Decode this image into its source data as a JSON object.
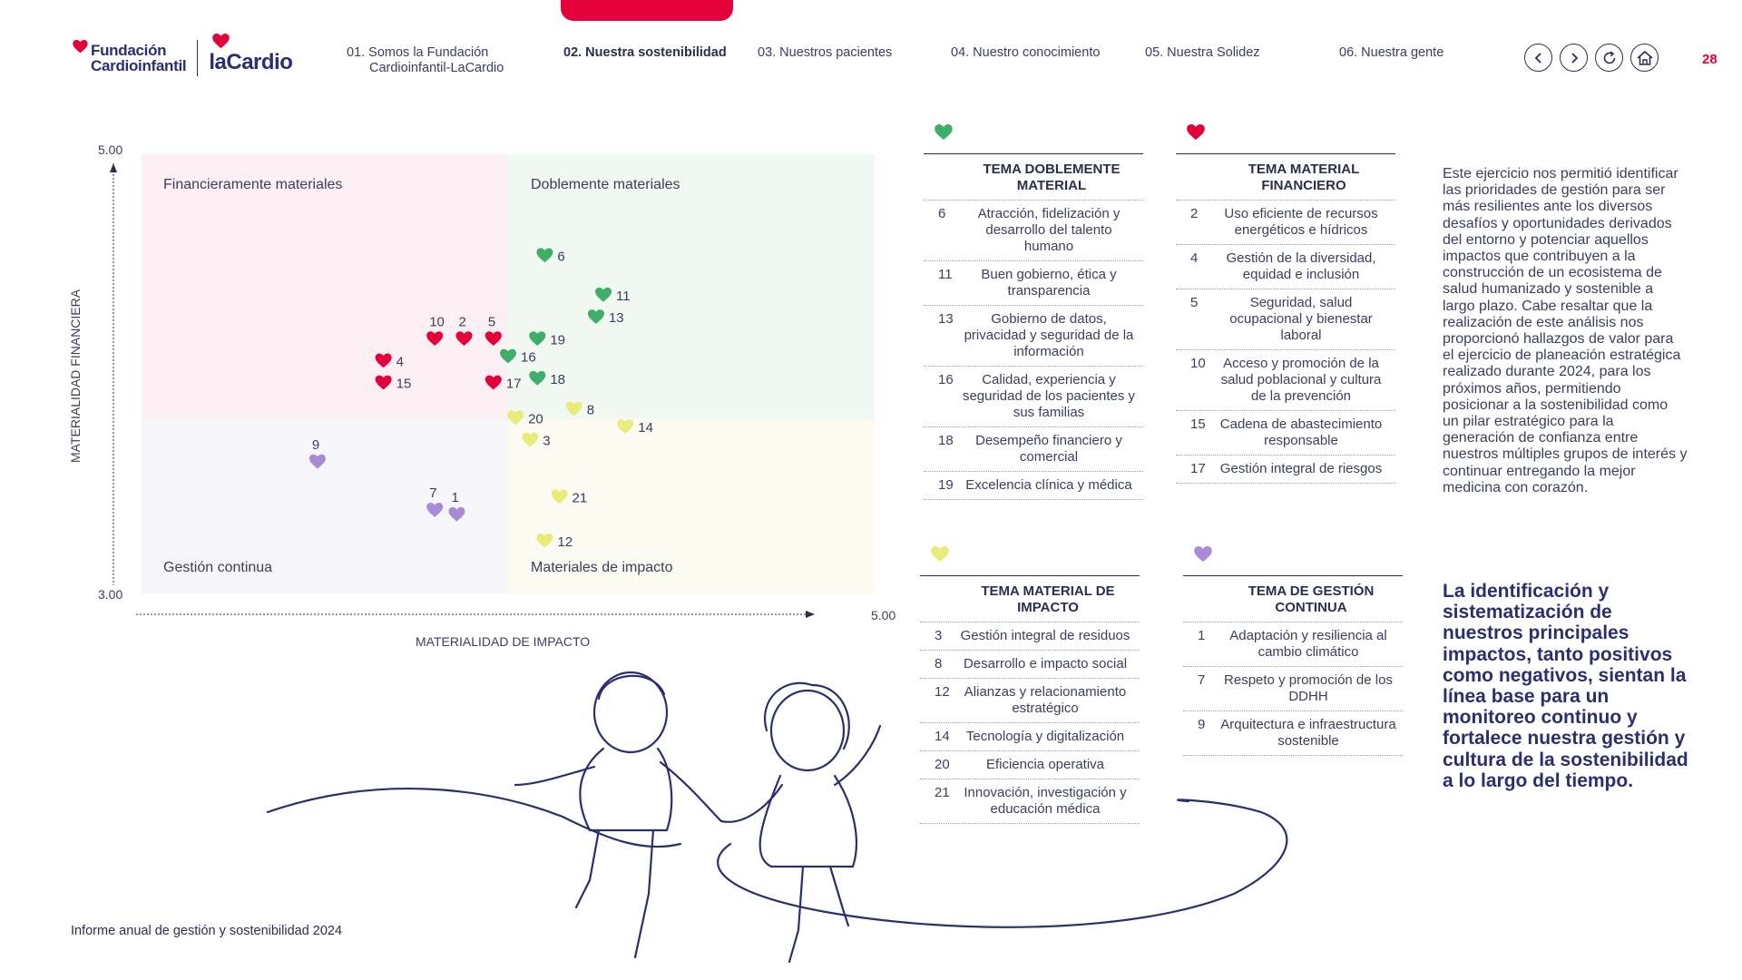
{
  "header": {
    "logo_primary": "Fundación Cardioinfantil",
    "logo_secondary": "laCardio",
    "page_number": "28",
    "nav": [
      {
        "num": "01.",
        "label": "Somos la Fundación",
        "label2": "Cardioinfantil-LaCardio",
        "active": false
      },
      {
        "num": "02.",
        "label": "Nuestra sostenibilidad",
        "label2": "",
        "active": true
      },
      {
        "num": "03.",
        "label": "Nuestros pacientes",
        "label2": "",
        "active": false
      },
      {
        "num": "04.",
        "label": "Nuestro conocimiento",
        "label2": "",
        "active": false
      },
      {
        "num": "05.",
        "label": "Nuestra Solidez",
        "label2": "",
        "active": false
      },
      {
        "num": "06.",
        "label": "Nuestra gente",
        "label2": "",
        "active": false
      }
    ],
    "buttons": [
      "chevron-left-icon",
      "chevron-right-icon",
      "refresh-icon",
      "home-icon"
    ]
  },
  "colors": {
    "brand_red": "#e4003b",
    "navy": "#2b2f6e",
    "green": "#3fae6a",
    "yellow": "#e9ec7a",
    "purple": "#a98ad6",
    "quad_financial": "#fcf0f4",
    "quad_double": "#f1f8f2",
    "quad_continuous": "#f6f5fa",
    "quad_impact": "#fbfbf1"
  },
  "chart_data": {
    "type": "scatter",
    "ylabel": "MATERIALIDAD FINANCIERA",
    "xlabel": "MATERIALIDAD DE IMPACTO",
    "y_tick_labels": [
      "5.00",
      "3.00"
    ],
    "x_tick_labels": [
      "5.00"
    ],
    "quadrants": [
      "Financieramente materiales",
      "Doblemente materiales",
      "Gestión continua",
      "Materiales de impacto"
    ],
    "points": [
      {
        "id": "1",
        "x": 0.43,
        "y": 0.18,
        "group": "continua"
      },
      {
        "id": "7",
        "x": 0.4,
        "y": 0.19,
        "group": "continua"
      },
      {
        "id": "9",
        "x": 0.24,
        "y": 0.3,
        "group": "continua"
      },
      {
        "id": "2",
        "x": 0.44,
        "y": 0.58,
        "group": "financiero"
      },
      {
        "id": "4",
        "x": 0.33,
        "y": 0.53,
        "group": "financiero"
      },
      {
        "id": "5",
        "x": 0.48,
        "y": 0.58,
        "group": "financiero"
      },
      {
        "id": "10",
        "x": 0.4,
        "y": 0.58,
        "group": "financiero"
      },
      {
        "id": "15",
        "x": 0.33,
        "y": 0.48,
        "group": "financiero"
      },
      {
        "id": "17",
        "x": 0.48,
        "y": 0.48,
        "group": "financiero"
      },
      {
        "id": "6",
        "x": 0.55,
        "y": 0.77,
        "group": "doble"
      },
      {
        "id": "11",
        "x": 0.63,
        "y": 0.68,
        "group": "doble"
      },
      {
        "id": "13",
        "x": 0.62,
        "y": 0.63,
        "group": "doble"
      },
      {
        "id": "16",
        "x": 0.5,
        "y": 0.54,
        "group": "doble"
      },
      {
        "id": "18",
        "x": 0.54,
        "y": 0.49,
        "group": "doble"
      },
      {
        "id": "19",
        "x": 0.54,
        "y": 0.58,
        "group": "doble"
      },
      {
        "id": "3",
        "x": 0.53,
        "y": 0.35,
        "group": "impacto"
      },
      {
        "id": "8",
        "x": 0.59,
        "y": 0.42,
        "group": "impacto"
      },
      {
        "id": "12",
        "x": 0.55,
        "y": 0.12,
        "group": "impacto"
      },
      {
        "id": "14",
        "x": 0.66,
        "y": 0.38,
        "group": "impacto"
      },
      {
        "id": "20",
        "x": 0.51,
        "y": 0.4,
        "group": "impacto"
      },
      {
        "id": "21",
        "x": 0.57,
        "y": 0.22,
        "group": "impacto"
      }
    ]
  },
  "tables": {
    "doble": {
      "title": "TEMA DOBLEMENTE MATERIAL",
      "rows": [
        {
          "n": "6",
          "t": "Atracción, fidelización y desarrollo del talento humano"
        },
        {
          "n": "11",
          "t": "Buen gobierno, ética y transparencia"
        },
        {
          "n": "13",
          "t": "Gobierno de datos, privacidad y seguridad de la información"
        },
        {
          "n": "16",
          "t": "Calidad, experiencia y seguridad de los pacientes y sus familias"
        },
        {
          "n": "18",
          "t": "Desempeño financiero y comercial"
        },
        {
          "n": "19",
          "t": "Excelencia clínica y médica"
        }
      ]
    },
    "financiero": {
      "title": "TEMA MATERIAL FINANCIERO",
      "rows": [
        {
          "n": "2",
          "t": "Uso eficiente de recursos energéticos e hídricos"
        },
        {
          "n": "4",
          "t": "Gestión de la diversidad, equidad e inclusión"
        },
        {
          "n": "5",
          "t": "Seguridad, salud ocupacional y bienestar laboral"
        },
        {
          "n": "10",
          "t": "Acceso y promoción de la salud poblacional y cultura de la prevención"
        },
        {
          "n": "15",
          "t": "Cadena de abastecimiento responsable"
        },
        {
          "n": "17",
          "t": "Gestión integral de riesgos"
        }
      ]
    },
    "impacto": {
      "title": "TEMA MATERIAL DE IMPACTO",
      "rows": [
        {
          "n": "3",
          "t": "Gestión integral de residuos"
        },
        {
          "n": "8",
          "t": "Desarrollo e impacto social"
        },
        {
          "n": "12",
          "t": "Alianzas y relacionamiento estratégico"
        },
        {
          "n": "14",
          "t": "Tecnología y digitalización"
        },
        {
          "n": "20",
          "t": "Eficiencia operativa"
        },
        {
          "n": "21",
          "t": "Innovación, investigación y educación médica"
        }
      ]
    },
    "continua": {
      "title": "TEMA DE GESTIÓN CONTINUA",
      "rows": [
        {
          "n": "1",
          "t": "Adaptación y resiliencia al cambio climático"
        },
        {
          "n": "7",
          "t": "Respeto y promoción de los DDHH"
        },
        {
          "n": "9",
          "t": "Arquitectura e infraestructura sostenible"
        }
      ]
    }
  },
  "side_text": "Este ejercicio nos permitió identificar las prioridades de gestión para ser más resilientes ante los diversos desafíos y oportunidades derivados del entorno y potenciar aquellos impactos que contribuyen a la construcción de un ecosistema de salud humanizado y sostenible a largo plazo. Cabe resaltar que la realización de este análisis nos proporcionó hallazgos de valor para el ejercicio de planeación estratégica realizado durante 2024, para los próximos años, permitiendo posicionar a la sostenibilidad como un pilar estratégico para la generación de confianza entre nuestros múltiples grupos de interés y continuar entregando la mejor medicina con corazón.",
  "side_bold": "La identificación y sistematización de nuestros principales impactos, tanto positivos como negativos, sientan la línea base para un monitoreo continuo y fortalece nuestra gestión y cultura de la sostenibilidad a lo largo del tiempo.",
  "footer": "Informe anual de gestión y sostenibilidad 2024"
}
